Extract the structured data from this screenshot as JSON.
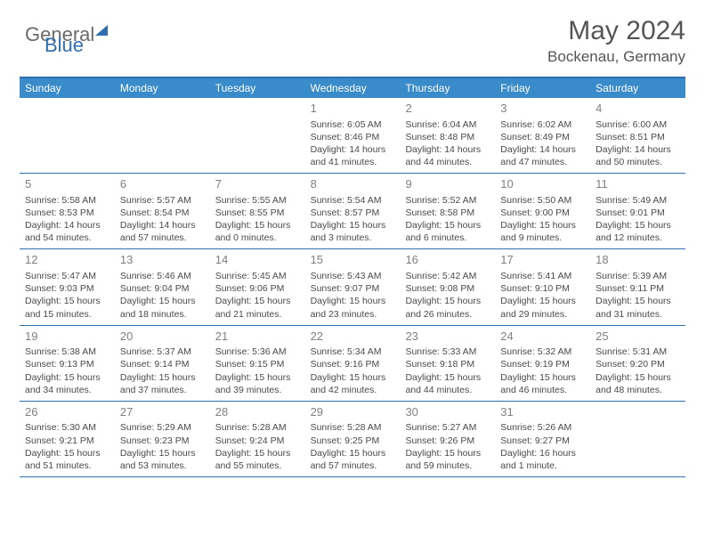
{
  "logo": {
    "part1": "General",
    "part2": "Blue"
  },
  "title": "May 2024",
  "location": "Bockenau, Germany",
  "colors": {
    "header_bg": "#3a8bc9",
    "rule": "#2f6fb0",
    "text": "#4a4a4a",
    "daynum": "#808080"
  },
  "days_of_week": [
    "Sunday",
    "Monday",
    "Tuesday",
    "Wednesday",
    "Thursday",
    "Friday",
    "Saturday"
  ],
  "weeks": [
    [
      {
        "n": "",
        "sunrise": "",
        "sunset": "",
        "daylight": ""
      },
      {
        "n": "",
        "sunrise": "",
        "sunset": "",
        "daylight": ""
      },
      {
        "n": "",
        "sunrise": "",
        "sunset": "",
        "daylight": ""
      },
      {
        "n": "1",
        "sunrise": "Sunrise: 6:05 AM",
        "sunset": "Sunset: 8:46 PM",
        "daylight": "Daylight: 14 hours and 41 minutes."
      },
      {
        "n": "2",
        "sunrise": "Sunrise: 6:04 AM",
        "sunset": "Sunset: 8:48 PM",
        "daylight": "Daylight: 14 hours and 44 minutes."
      },
      {
        "n": "3",
        "sunrise": "Sunrise: 6:02 AM",
        "sunset": "Sunset: 8:49 PM",
        "daylight": "Daylight: 14 hours and 47 minutes."
      },
      {
        "n": "4",
        "sunrise": "Sunrise: 6:00 AM",
        "sunset": "Sunset: 8:51 PM",
        "daylight": "Daylight: 14 hours and 50 minutes."
      }
    ],
    [
      {
        "n": "5",
        "sunrise": "Sunrise: 5:58 AM",
        "sunset": "Sunset: 8:53 PM",
        "daylight": "Daylight: 14 hours and 54 minutes."
      },
      {
        "n": "6",
        "sunrise": "Sunrise: 5:57 AM",
        "sunset": "Sunset: 8:54 PM",
        "daylight": "Daylight: 14 hours and 57 minutes."
      },
      {
        "n": "7",
        "sunrise": "Sunrise: 5:55 AM",
        "sunset": "Sunset: 8:55 PM",
        "daylight": "Daylight: 15 hours and 0 minutes."
      },
      {
        "n": "8",
        "sunrise": "Sunrise: 5:54 AM",
        "sunset": "Sunset: 8:57 PM",
        "daylight": "Daylight: 15 hours and 3 minutes."
      },
      {
        "n": "9",
        "sunrise": "Sunrise: 5:52 AM",
        "sunset": "Sunset: 8:58 PM",
        "daylight": "Daylight: 15 hours and 6 minutes."
      },
      {
        "n": "10",
        "sunrise": "Sunrise: 5:50 AM",
        "sunset": "Sunset: 9:00 PM",
        "daylight": "Daylight: 15 hours and 9 minutes."
      },
      {
        "n": "11",
        "sunrise": "Sunrise: 5:49 AM",
        "sunset": "Sunset: 9:01 PM",
        "daylight": "Daylight: 15 hours and 12 minutes."
      }
    ],
    [
      {
        "n": "12",
        "sunrise": "Sunrise: 5:47 AM",
        "sunset": "Sunset: 9:03 PM",
        "daylight": "Daylight: 15 hours and 15 minutes."
      },
      {
        "n": "13",
        "sunrise": "Sunrise: 5:46 AM",
        "sunset": "Sunset: 9:04 PM",
        "daylight": "Daylight: 15 hours and 18 minutes."
      },
      {
        "n": "14",
        "sunrise": "Sunrise: 5:45 AM",
        "sunset": "Sunset: 9:06 PM",
        "daylight": "Daylight: 15 hours and 21 minutes."
      },
      {
        "n": "15",
        "sunrise": "Sunrise: 5:43 AM",
        "sunset": "Sunset: 9:07 PM",
        "daylight": "Daylight: 15 hours and 23 minutes."
      },
      {
        "n": "16",
        "sunrise": "Sunrise: 5:42 AM",
        "sunset": "Sunset: 9:08 PM",
        "daylight": "Daylight: 15 hours and 26 minutes."
      },
      {
        "n": "17",
        "sunrise": "Sunrise: 5:41 AM",
        "sunset": "Sunset: 9:10 PM",
        "daylight": "Daylight: 15 hours and 29 minutes."
      },
      {
        "n": "18",
        "sunrise": "Sunrise: 5:39 AM",
        "sunset": "Sunset: 9:11 PM",
        "daylight": "Daylight: 15 hours and 31 minutes."
      }
    ],
    [
      {
        "n": "19",
        "sunrise": "Sunrise: 5:38 AM",
        "sunset": "Sunset: 9:13 PM",
        "daylight": "Daylight: 15 hours and 34 minutes."
      },
      {
        "n": "20",
        "sunrise": "Sunrise: 5:37 AM",
        "sunset": "Sunset: 9:14 PM",
        "daylight": "Daylight: 15 hours and 37 minutes."
      },
      {
        "n": "21",
        "sunrise": "Sunrise: 5:36 AM",
        "sunset": "Sunset: 9:15 PM",
        "daylight": "Daylight: 15 hours and 39 minutes."
      },
      {
        "n": "22",
        "sunrise": "Sunrise: 5:34 AM",
        "sunset": "Sunset: 9:16 PM",
        "daylight": "Daylight: 15 hours and 42 minutes."
      },
      {
        "n": "23",
        "sunrise": "Sunrise: 5:33 AM",
        "sunset": "Sunset: 9:18 PM",
        "daylight": "Daylight: 15 hours and 44 minutes."
      },
      {
        "n": "24",
        "sunrise": "Sunrise: 5:32 AM",
        "sunset": "Sunset: 9:19 PM",
        "daylight": "Daylight: 15 hours and 46 minutes."
      },
      {
        "n": "25",
        "sunrise": "Sunrise: 5:31 AM",
        "sunset": "Sunset: 9:20 PM",
        "daylight": "Daylight: 15 hours and 48 minutes."
      }
    ],
    [
      {
        "n": "26",
        "sunrise": "Sunrise: 5:30 AM",
        "sunset": "Sunset: 9:21 PM",
        "daylight": "Daylight: 15 hours and 51 minutes."
      },
      {
        "n": "27",
        "sunrise": "Sunrise: 5:29 AM",
        "sunset": "Sunset: 9:23 PM",
        "daylight": "Daylight: 15 hours and 53 minutes."
      },
      {
        "n": "28",
        "sunrise": "Sunrise: 5:28 AM",
        "sunset": "Sunset: 9:24 PM",
        "daylight": "Daylight: 15 hours and 55 minutes."
      },
      {
        "n": "29",
        "sunrise": "Sunrise: 5:28 AM",
        "sunset": "Sunset: 9:25 PM",
        "daylight": "Daylight: 15 hours and 57 minutes."
      },
      {
        "n": "30",
        "sunrise": "Sunrise: 5:27 AM",
        "sunset": "Sunset: 9:26 PM",
        "daylight": "Daylight: 15 hours and 59 minutes."
      },
      {
        "n": "31",
        "sunrise": "Sunrise: 5:26 AM",
        "sunset": "Sunset: 9:27 PM",
        "daylight": "Daylight: 16 hours and 1 minute."
      },
      {
        "n": "",
        "sunrise": "",
        "sunset": "",
        "daylight": ""
      }
    ]
  ]
}
